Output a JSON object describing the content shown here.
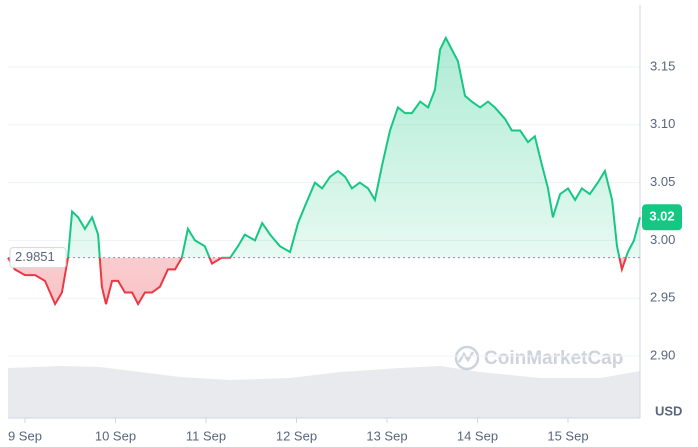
{
  "chart_data": {
    "type": "line",
    "x": [
      -4.5,
      -2.7,
      0,
      2.7,
      5.3,
      8.0,
      9.8,
      11.4,
      12.5,
      14.1,
      15.9,
      17.8,
      19.4,
      20.4,
      21.5,
      23.1,
      24.7,
      26.5,
      28.4,
      30.0,
      31.8,
      33.7,
      35.8,
      37.9,
      39.8,
      41.6,
      43.2,
      45.1,
      47.7,
      49.6,
      52.2,
      54.4,
      56.5,
      58.3,
      61.0,
      62.9,
      65.0,
      67.6,
      70.3,
      72.4,
      74.3,
      76.9,
      78.8,
      80.9,
      83.0,
      84.9,
      86.7,
      88.8,
      91.0,
      92.8,
      94.7,
      96.8,
      98.9,
      100.8,
      102.6,
      104.8,
      106.9,
      108.7,
      110.1,
      111.6,
      113.2,
      114.8,
      116.7,
      118.5,
      120.7,
      122.8,
      124.6,
      127.3,
      129.1,
      131.3,
      133.4,
      135.2,
      137.1,
      138.7,
      140.0,
      141.9,
      144.0,
      145.9,
      147.7,
      149.8,
      151.9,
      153.8,
      155.7,
      157.0,
      158.3,
      159.9,
      161.5,
      163.1
    ],
    "series": [
      {
        "name": "Price",
        "color": "#16c784",
        "below_color": "#ea3943",
        "values": [
          2.985,
          2.975,
          2.97,
          2.97,
          2.965,
          2.945,
          2.955,
          2.985,
          3.025,
          3.02,
          3.01,
          3.02,
          3.005,
          2.96,
          2.945,
          2.965,
          2.965,
          2.955,
          2.955,
          2.945,
          2.955,
          2.955,
          2.96,
          2.975,
          2.975,
          2.985,
          3.01,
          3.0,
          2.995,
          2.98,
          2.985,
          2.985,
          2.995,
          3.005,
          3.0,
          3.015,
          3.005,
          2.995,
          2.99,
          3.015,
          3.03,
          3.05,
          3.045,
          3.055,
          3.06,
          3.055,
          3.045,
          3.05,
          3.045,
          3.035,
          3.065,
          3.095,
          3.115,
          3.11,
          3.11,
          3.12,
          3.115,
          3.13,
          3.165,
          3.175,
          3.165,
          3.155,
          3.125,
          3.12,
          3.115,
          3.12,
          3.115,
          3.105,
          3.095,
          3.095,
          3.085,
          3.09,
          3.065,
          3.045,
          3.02,
          3.04,
          3.045,
          3.035,
          3.045,
          3.04,
          3.05,
          3.06,
          3.035,
          2.995,
          2.975,
          2.99,
          3.0,
          3.02
        ]
      }
    ],
    "baseline": 2.9851,
    "last_price": 3.02,
    "xlim": [
      -4.5,
      163.1
    ],
    "xticks": [
      {
        "value": 0,
        "label": "9 Sep"
      },
      {
        "value": 24,
        "label": "10 Sep"
      },
      {
        "value": 48,
        "label": "11 Sep"
      },
      {
        "value": 72,
        "label": "12 Sep"
      },
      {
        "value": 96,
        "label": "13 Sep"
      },
      {
        "value": 120,
        "label": "14 Sep"
      },
      {
        "value": 144,
        "label": "15 Sep"
      }
    ],
    "ylim": [
      2.85,
      3.2
    ],
    "yticks": [
      {
        "value": 2.9,
        "label": "2.90"
      },
      2.95,
      {
        "value": 3.0,
        "label": "3.00"
      },
      3.05,
      {
        "value": 3.1,
        "label": "3.10"
      },
      3.15
    ],
    "y_unit": "USD",
    "watermark": "CoinMarketCap",
    "grid": true
  }
}
